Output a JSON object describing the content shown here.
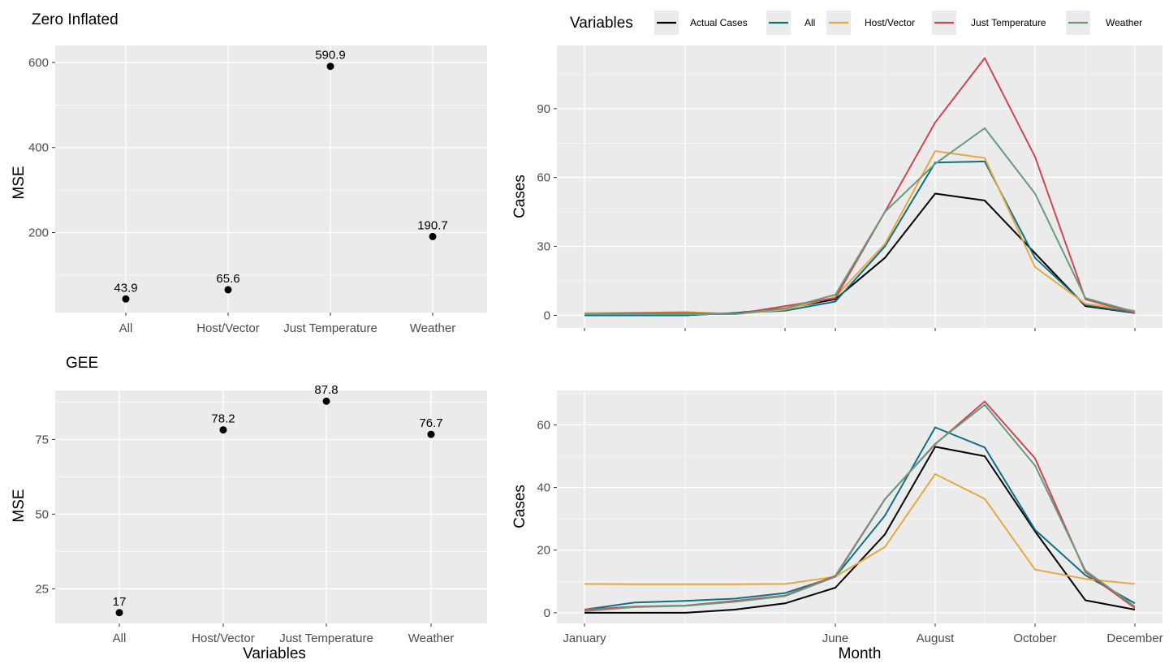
{
  "legend": {
    "title": "Variables",
    "entries": [
      {
        "label": "Actual Cases",
        "color": "#000000"
      },
      {
        "label": "All",
        "color": "#0b7189"
      },
      {
        "label": "Host/Vector",
        "color": "#e9a73f"
      },
      {
        "label": "Just Temperature",
        "color": "#cf4552"
      },
      {
        "label": "Weather",
        "color": "#679b7d"
      }
    ]
  },
  "panel_background": "#ebebeb",
  "chart_data": [
    {
      "type": "scatter",
      "title": "Zero Inflated",
      "xlabel": "",
      "ylabel": "MSE",
      "categories": [
        "All",
        "Host/Vector",
        "Just Temperature",
        "Weather"
      ],
      "values": [
        43.9,
        65.6,
        590.9,
        190.7
      ],
      "data_labels": [
        "43.9",
        "65.6",
        "590.9",
        "190.7"
      ],
      "ylim": [
        12,
        640
      ],
      "yticks": [
        200,
        400,
        600
      ],
      "grid": true
    },
    {
      "type": "scatter",
      "title": "GEE",
      "xlabel": "Variables",
      "ylabel": "MSE",
      "categories": [
        "All",
        "Host/Vector",
        "Just Temperature",
        "Weather"
      ],
      "values": [
        17,
        78.2,
        87.8,
        76.7
      ],
      "data_labels": [
        "17",
        "78.2",
        "87.8",
        "76.7"
      ],
      "ylim": [
        13.4,
        91.4
      ],
      "yticks": [
        25,
        50,
        75
      ],
      "grid": true
    },
    {
      "type": "line",
      "title": "",
      "xlabel": "",
      "ylabel": "Cases",
      "x": [
        1,
        2,
        3,
        4,
        5,
        6,
        7,
        8,
        9,
        10,
        11,
        12
      ],
      "xlim": [
        1,
        12
      ],
      "xticks": [
        1,
        6,
        8,
        10,
        12
      ],
      "xticklabels": [],
      "xtick_marks_only": [
        1,
        3,
        5,
        6,
        8,
        10,
        12
      ],
      "ylim": [
        -5.5,
        117.5
      ],
      "yticks": [
        0,
        30,
        60,
        90
      ],
      "series": [
        {
          "name": "Actual Cases",
          "values": [
            0,
            0,
            0,
            1,
            3,
            7,
            25,
            53,
            50,
            27,
            4,
            1
          ]
        },
        {
          "name": "All",
          "values": [
            0,
            0,
            0,
            1,
            2,
            6,
            30,
            66.5,
            67,
            25,
            4.5,
            1
          ]
        },
        {
          "name": "Host/Vector",
          "values": [
            1,
            1,
            1.5,
            0.5,
            2.5,
            8,
            31,
            71.5,
            68.5,
            21,
            5,
            2
          ]
        },
        {
          "name": "Just Temperature",
          "values": [
            0.5,
            1,
            1,
            0.5,
            4,
            7.5,
            45,
            84,
            112,
            69,
            7,
            1
          ]
        },
        {
          "name": "Weather",
          "values": [
            0.5,
            0.5,
            0.5,
            0.5,
            3,
            9,
            45,
            66,
            81.5,
            53,
            7.5,
            1.5
          ]
        }
      ],
      "grid": true
    },
    {
      "type": "line",
      "title": "",
      "xlabel": "Month",
      "ylabel": "Cases",
      "x": [
        1,
        2,
        3,
        4,
        5,
        6,
        7,
        8,
        9,
        10,
        11,
        12
      ],
      "xlim": [
        1,
        12
      ],
      "xticks": [
        1,
        6,
        8,
        10,
        12
      ],
      "xticklabels": [
        "January",
        "June",
        "August",
        "October",
        "December"
      ],
      "ylim": [
        -3.4,
        71
      ],
      "yticks": [
        0,
        20,
        40,
        60
      ],
      "series": [
        {
          "name": "Actual Cases",
          "values": [
            0,
            0,
            0,
            1,
            3,
            8,
            25,
            53,
            50,
            26,
            4,
            1
          ]
        },
        {
          "name": "All",
          "values": [
            1,
            3.3,
            3.8,
            4.5,
            6.3,
            11.5,
            31,
            59.2,
            52.8,
            26.5,
            12,
            3
          ]
        },
        {
          "name": "Host/Vector",
          "values": [
            9.2,
            9.1,
            9.1,
            9.1,
            9.2,
            11.5,
            21,
            44.3,
            36.4,
            13.8,
            10.8,
            9.2
          ]
        },
        {
          "name": "Just Temperature",
          "values": [
            1,
            2,
            2.3,
            3.8,
            5.5,
            11.8,
            36.3,
            53.8,
            67.5,
            49.3,
            13,
            1.5
          ]
        },
        {
          "name": "Weather",
          "values": [
            0.5,
            1.8,
            2.2,
            3.5,
            5.3,
            11.5,
            36.2,
            54,
            66.4,
            47,
            13.5,
            2
          ]
        }
      ],
      "grid": true
    }
  ]
}
